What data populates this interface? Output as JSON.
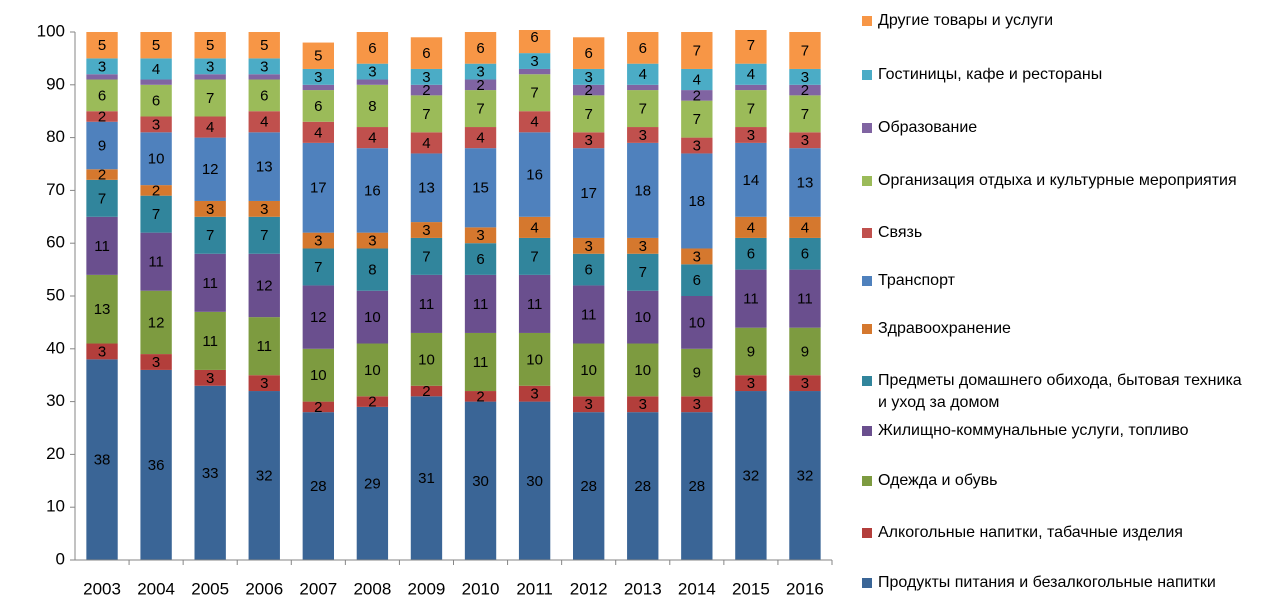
{
  "chart_data": {
    "type": "stacked_bar",
    "categories": [
      "2003",
      "2004",
      "2005",
      "2006",
      "2007",
      "2008",
      "2009",
      "2010",
      "2011",
      "2012",
      "2013",
      "2014",
      "2015",
      "2016"
    ],
    "ylim": [
      0,
      100
    ],
    "yticks": [
      0,
      10,
      20,
      30,
      40,
      50,
      60,
      70,
      80,
      90,
      100
    ],
    "grid": false,
    "legend": "right",
    "series": [
      {
        "name": "Продукты питания и безалкогольные напитки",
        "color": "#3a6596",
        "values": [
          38,
          36,
          33,
          32,
          28,
          29,
          31,
          30,
          30,
          28,
          28,
          28,
          32,
          32
        ]
      },
      {
        "name": "Алкогольные напитки, табачные изделия",
        "color": "#b33e3b",
        "values": [
          3,
          3,
          3,
          3,
          2,
          2,
          2,
          2,
          3,
          3,
          3,
          3,
          3,
          3
        ]
      },
      {
        "name": "Одежда и обувь",
        "color": "#7d9b40",
        "values": [
          13,
          12,
          11,
          11,
          10,
          10,
          10,
          11,
          10,
          10,
          10,
          9,
          9,
          9
        ]
      },
      {
        "name": "Жилищно-коммунальные услуги, топливо",
        "color": "#6a4f8e",
        "values": [
          11,
          11,
          11,
          12,
          12,
          10,
          11,
          11,
          11,
          11,
          10,
          10,
          11,
          11
        ]
      },
      {
        "name": "Предметы домашнего обихода, бытовая техника и уход за домом",
        "color": "#31859c",
        "values": [
          7,
          7,
          7,
          7,
          7,
          8,
          7,
          6,
          7,
          6,
          7,
          6,
          6,
          6
        ]
      },
      {
        "name": "Здравоохранение",
        "color": "#d5782e",
        "values": [
          2,
          2,
          3,
          3,
          3,
          3,
          3,
          3,
          4,
          3,
          3,
          3,
          4,
          4
        ]
      },
      {
        "name": "Транспорт",
        "color": "#4f81bd",
        "values": [
          9,
          10,
          12,
          13,
          17,
          16,
          13,
          15,
          16,
          17,
          18,
          18,
          14,
          13
        ]
      },
      {
        "name": "Связь",
        "color": "#c0504d",
        "values": [
          2,
          3,
          4,
          4,
          4,
          4,
          4,
          4,
          4,
          3,
          3,
          3,
          3,
          3
        ]
      },
      {
        "name": "Организация отдыха и культурные мероприятия",
        "color": "#9bbb59",
        "values": [
          6,
          6,
          7,
          6,
          6,
          8,
          7,
          7,
          7,
          7,
          7,
          7,
          7,
          7
        ]
      },
      {
        "name": "Образование",
        "color": "#8064a2",
        "values": [
          1,
          1,
          1,
          1,
          1,
          1,
          2,
          2,
          1,
          2,
          1,
          2,
          1,
          2
        ]
      },
      {
        "name": "Гостиницы, кафе и рестораны",
        "color": "#4bacc6",
        "values": [
          3,
          4,
          3,
          3,
          3,
          3,
          3,
          3,
          3,
          3,
          4,
          4,
          4,
          3
        ]
      },
      {
        "name": "Другие товары и услуги",
        "color": "#f79646",
        "values": [
          5,
          5,
          5,
          5,
          5,
          6,
          6,
          6,
          6,
          6,
          6,
          7,
          7,
          7
        ]
      }
    ]
  }
}
